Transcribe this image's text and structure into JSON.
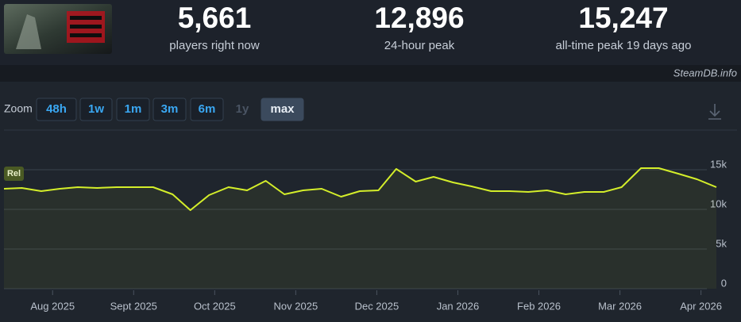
{
  "header": {
    "stats": [
      {
        "value": "5,661",
        "label": "players right now"
      },
      {
        "value": "12,896",
        "label": "24-hour peak"
      },
      {
        "value": "15,247",
        "label": "all-time peak 19 days ago"
      }
    ],
    "site": "SteamDB.info"
  },
  "zoom": {
    "label": "Zoom",
    "buttons": [
      "48h",
      "1w",
      "1m",
      "3m",
      "6m",
      "1y",
      "max"
    ]
  },
  "chart_data": {
    "type": "line",
    "color": "#d4ee2a",
    "grid": true,
    "annotations": [
      "Rel"
    ],
    "x": [
      -0.6,
      -0.38,
      -0.14,
      0.09,
      0.31,
      0.55,
      0.79,
      1.02,
      1.24,
      1.48,
      1.7,
      1.93,
      2.17,
      2.4,
      2.63,
      2.86,
      3.09,
      3.32,
      3.56,
      3.79,
      4.02,
      4.24,
      4.48,
      4.7,
      4.94,
      5.17,
      5.41,
      5.64,
      5.87,
      6.1,
      6.33,
      6.56,
      6.8,
      7.02,
      7.26,
      7.48,
      7.72,
      7.95,
      8.19
    ],
    "values": [
      12600,
      12700,
      12300,
      12600,
      12800,
      12700,
      12800,
      12800,
      12800,
      11900,
      9900,
      11800,
      12800,
      12400,
      13600,
      11900,
      12400,
      12600,
      11600,
      12300,
      12400,
      15100,
      13500,
      14100,
      13400,
      12900,
      12300,
      12300,
      12200,
      12400,
      11900,
      12200,
      12200,
      12800,
      15200,
      15200,
      14500,
      13800,
      12800
    ],
    "xlim": [
      -0.6,
      8.19
    ],
    "xticks": [
      {
        "value": 0,
        "label": "Aug 2025"
      },
      {
        "value": 1,
        "label": "Sept 2025"
      },
      {
        "value": 2,
        "label": "Oct 2025"
      },
      {
        "value": 3,
        "label": "Nov 2025"
      },
      {
        "value": 4,
        "label": "Dec 2025"
      },
      {
        "value": 5,
        "label": "Jan 2026"
      },
      {
        "value": 6,
        "label": "Feb 2026"
      },
      {
        "value": 7,
        "label": "Mar 2026"
      },
      {
        "value": 8,
        "label": "Apr 2026"
      }
    ],
    "ylim": [
      0,
      20000
    ],
    "yticks": [
      0,
      {
        "value": 5000,
        "label": "5k"
      },
      {
        "value": 10000,
        "label": "10k"
      },
      {
        "value": 15000,
        "label": "15k"
      }
    ]
  }
}
